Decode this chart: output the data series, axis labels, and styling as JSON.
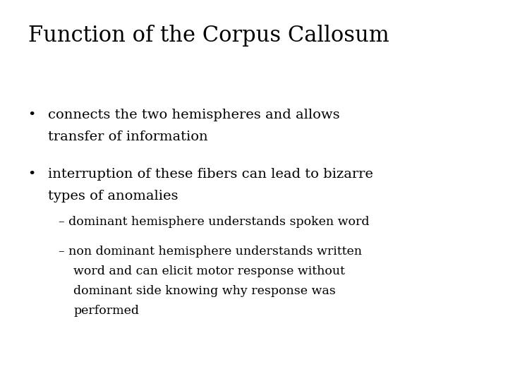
{
  "title": "Function of the Corpus Callosum",
  "title_fontsize": 22,
  "background_color": "#ffffff",
  "text_color": "#000000",
  "bullet1_line1": "connects the two hemispheres and allows",
  "bullet1_line2": "transfer of information",
  "bullet2_line1": "interruption of these fibers can lead to bizarre",
  "bullet2_line2": "types of anomalies",
  "sub1": "– dominant hemisphere understands spoken word",
  "sub2_line1": "– non dominant hemisphere understands written",
  "sub2_line2": "word and can elicit motor response without",
  "sub2_line3": "dominant side knowing why response was",
  "sub2_line4": "performed",
  "body_fontsize": 14,
  "sub_fontsize": 12.5,
  "bullet_char": "•",
  "font_family": "DejaVu Serif"
}
